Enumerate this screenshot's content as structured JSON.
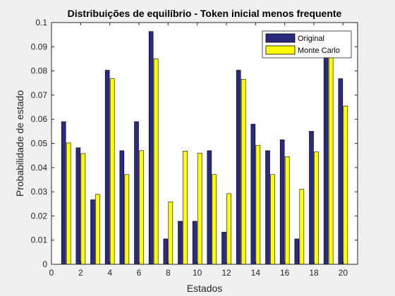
{
  "chart_data": {
    "type": "bar",
    "title": "Distribuições de equilíbrio - Token inicial menos frequente",
    "xlabel": "Estados",
    "ylabel": "Probabilidade de estado",
    "xlim": [
      0,
      21
    ],
    "ylim": [
      0,
      0.1
    ],
    "xticks": [
      0,
      2,
      4,
      6,
      8,
      10,
      12,
      14,
      16,
      18,
      20
    ],
    "xtick_labels": [
      "0",
      "2",
      "4",
      "6",
      "8",
      "10",
      "12",
      "14",
      "16",
      "18",
      "20"
    ],
    "yticks": [
      0,
      0.01,
      0.02,
      0.03,
      0.04,
      0.05,
      0.06,
      0.07,
      0.08,
      0.09,
      0.1
    ],
    "ytick_labels": [
      "0",
      "0.01",
      "0.02",
      "0.03",
      "0.04",
      "0.05",
      "0.06",
      "0.07",
      "0.08",
      "0.09",
      "0.1"
    ],
    "grid": false,
    "legend_position": "top-right",
    "categories": [
      1,
      2,
      3,
      4,
      5,
      6,
      7,
      8,
      9,
      10,
      11,
      12,
      13,
      14,
      15,
      16,
      17,
      18,
      19,
      20
    ],
    "series": [
      {
        "name": "Original",
        "color": "#2a2a80",
        "values": [
          0.059,
          0.0482,
          0.0267,
          0.0803,
          0.047,
          0.059,
          0.0963,
          0.0105,
          0.0178,
          0.0178,
          0.047,
          0.0133,
          0.0803,
          0.058,
          0.047,
          0.0515,
          0.0105,
          0.055,
          0.0963,
          0.0768
        ]
      },
      {
        "name": "Monte Carlo",
        "color": "#ffff00",
        "values": [
          0.0502,
          0.0458,
          0.0289,
          0.0768,
          0.0371,
          0.047,
          0.085,
          0.0258,
          0.0468,
          0.046,
          0.0371,
          0.0292,
          0.0766,
          0.0492,
          0.0371,
          0.0445,
          0.031,
          0.0465,
          0.0935,
          0.0655
        ]
      }
    ]
  }
}
